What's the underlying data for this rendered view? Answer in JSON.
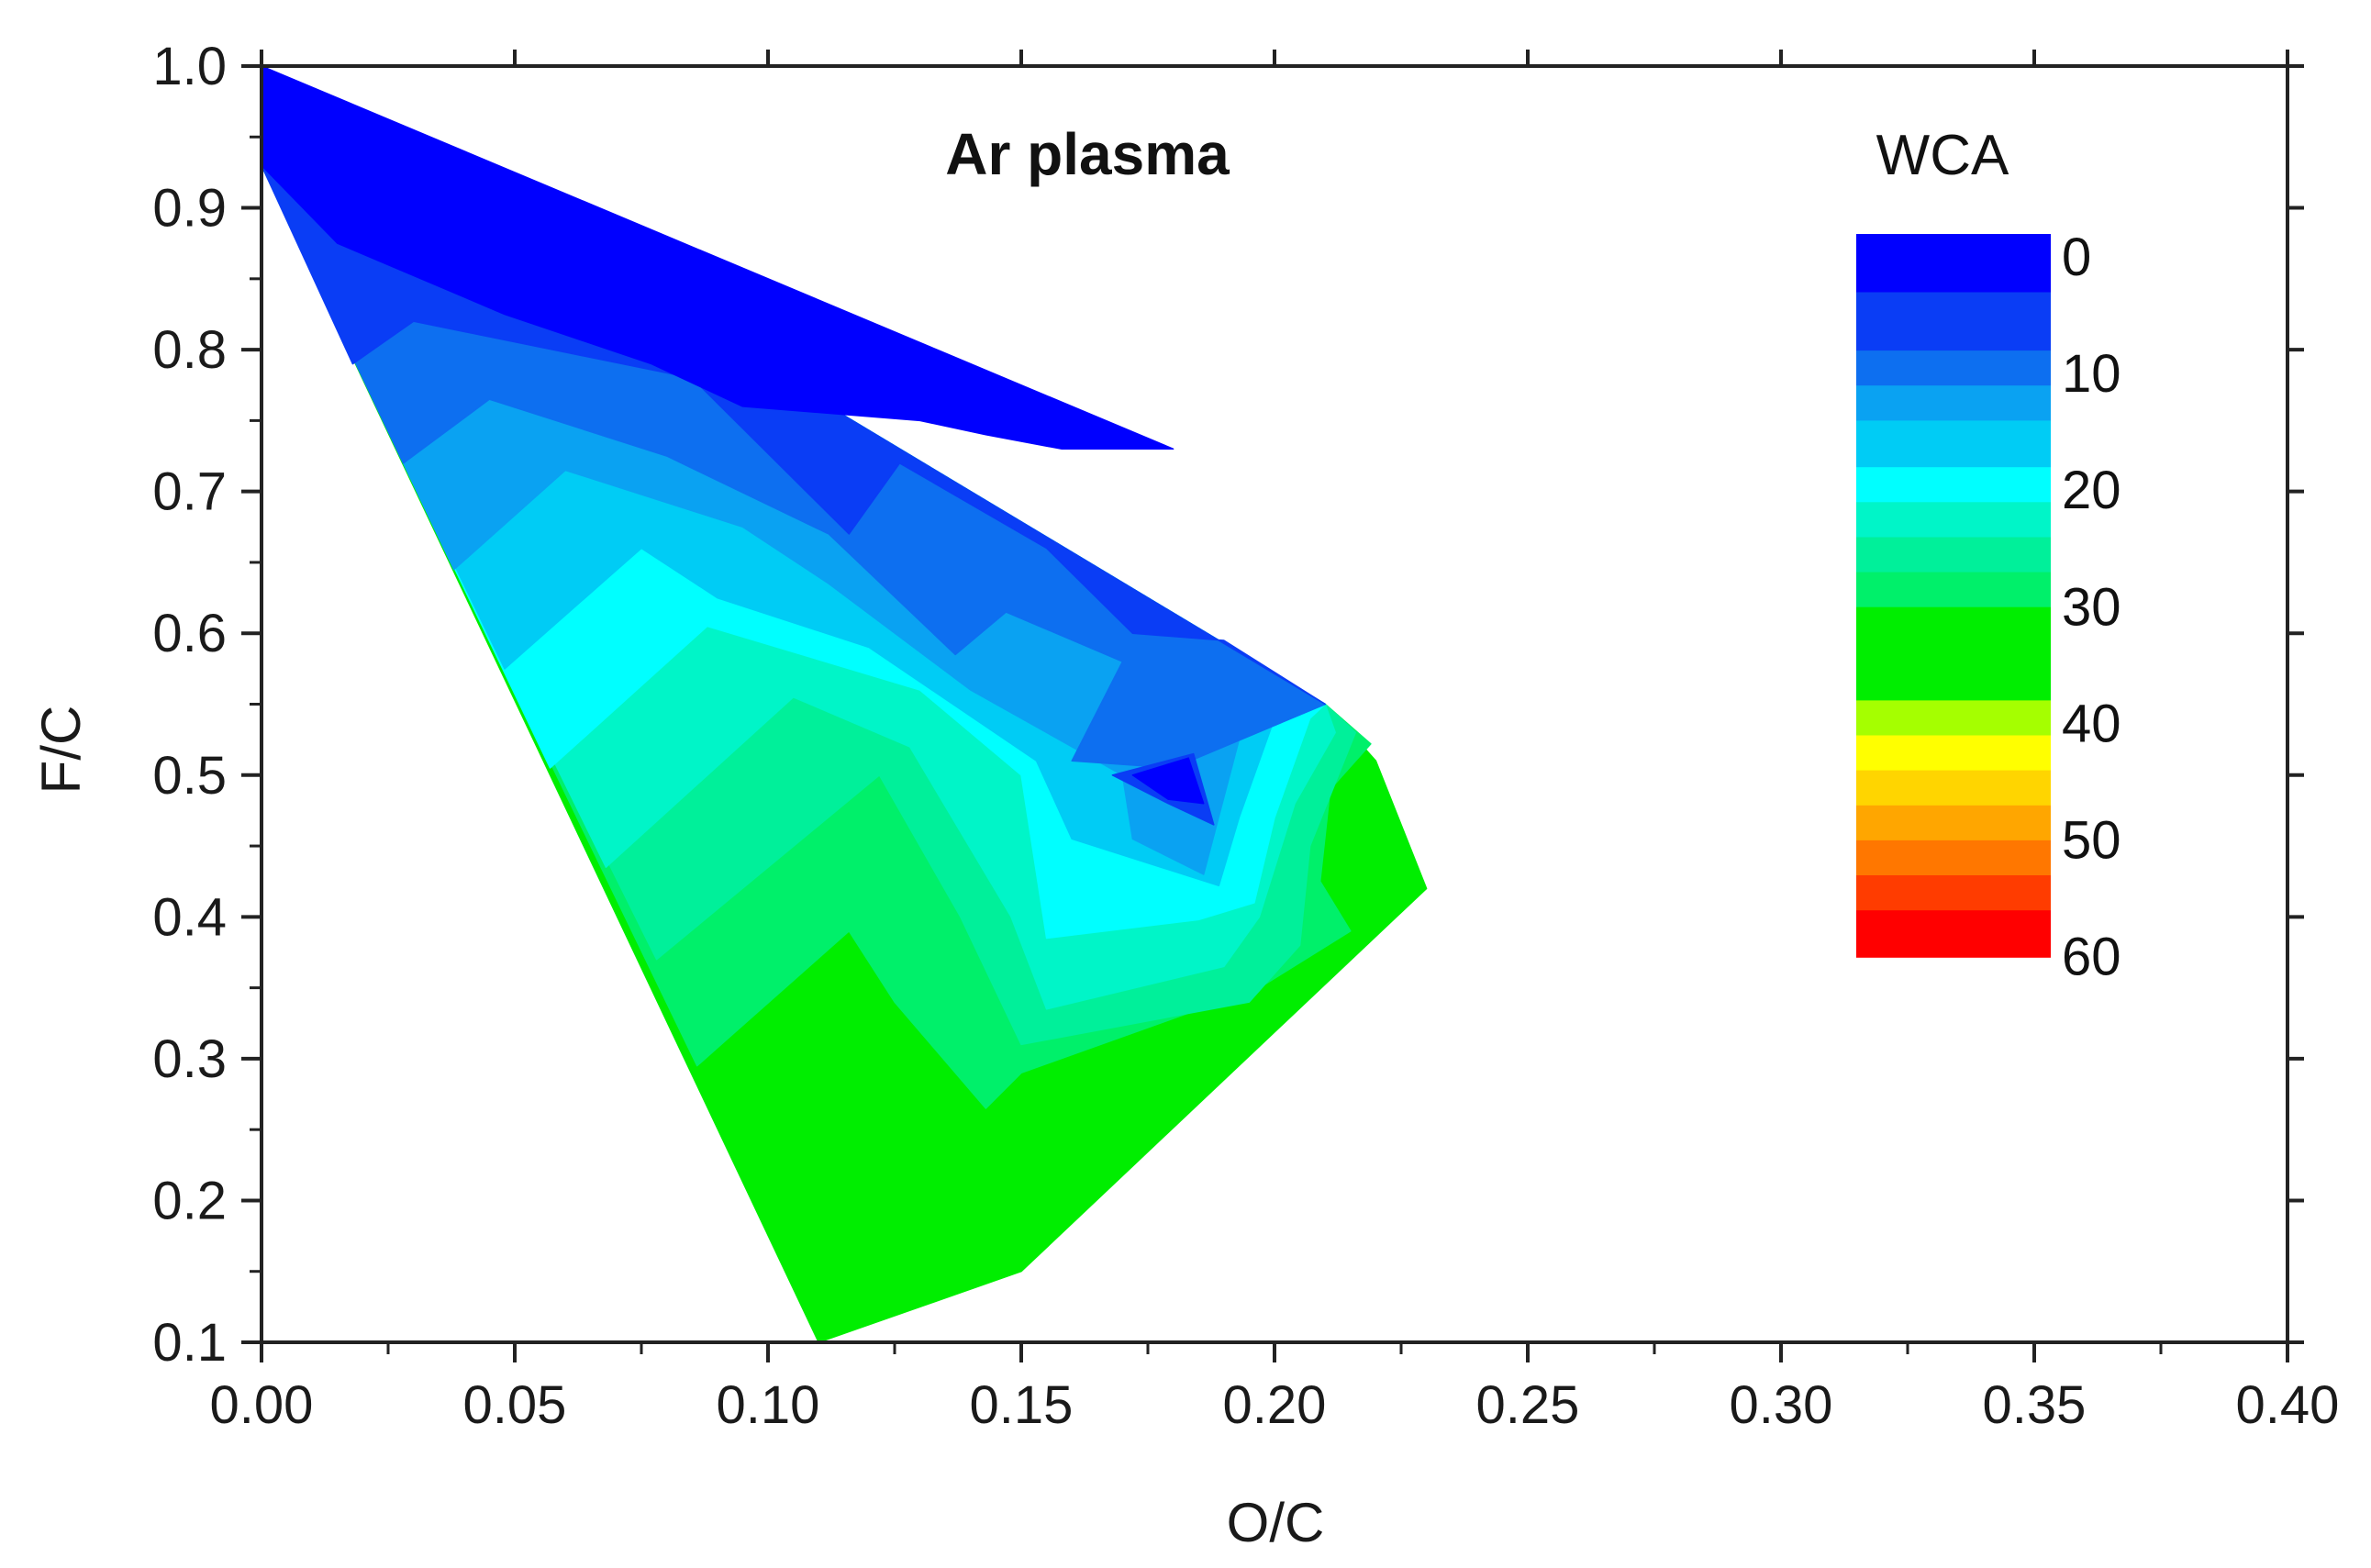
{
  "chart_data": {
    "type": "contour",
    "title": "Ar plasma",
    "xlabel": "O/C",
    "ylabel": "F/C",
    "xlim": [
      0.0,
      0.4
    ],
    "ylim": [
      0.1,
      1.0
    ],
    "x_ticks": [
      "0.00",
      "0.05",
      "0.10",
      "0.15",
      "0.20",
      "0.25",
      "0.30",
      "0.35",
      "0.40"
    ],
    "y_ticks": [
      "0.1",
      "0.2",
      "0.3",
      "0.4",
      "0.5",
      "0.6",
      "0.7",
      "0.8",
      "0.9",
      "1.0"
    ],
    "colorbar": {
      "title": "WCA",
      "labels": [
        "0",
        "10",
        "20",
        "30",
        "40",
        "50",
        "60"
      ],
      "levels": [
        {
          "from": 0,
          "to": 5,
          "color": "#0000ff"
        },
        {
          "from": 5,
          "to": 10,
          "color": "#0a3df5"
        },
        {
          "from": 10,
          "to": 13,
          "color": "#0d6ff0"
        },
        {
          "from": 13,
          "to": 16,
          "color": "#0aa2f2"
        },
        {
          "from": 16,
          "to": 20,
          "color": "#00ccf5"
        },
        {
          "from": 20,
          "to": 23,
          "color": "#00ffff"
        },
        {
          "from": 23,
          "to": 26,
          "color": "#00f5c8"
        },
        {
          "from": 26,
          "to": 29,
          "color": "#00f09a"
        },
        {
          "from": 29,
          "to": 32,
          "color": "#00f06a"
        },
        {
          "from": 32,
          "to": 40,
          "color": "#00ee00"
        },
        {
          "from": 40,
          "to": 43,
          "color": "#a5ff00"
        },
        {
          "from": 43,
          "to": 46,
          "color": "#ffff00"
        },
        {
          "from": 46,
          "to": 49,
          "color": "#ffd500"
        },
        {
          "from": 49,
          "to": 52,
          "color": "#ffa600"
        },
        {
          "from": 52,
          "to": 55,
          "color": "#ff7700"
        },
        {
          "from": 55,
          "to": 58,
          "color": "#ff3c00"
        },
        {
          "from": 58,
          "to": 62,
          "color": "#ff0000"
        }
      ]
    },
    "domain_outline": [
      [
        0.0,
        1.0
      ],
      [
        0.21,
        0.55
      ],
      [
        0.22,
        0.51
      ],
      [
        0.23,
        0.42
      ],
      [
        0.15,
        0.15
      ],
      [
        0.11,
        0.1
      ],
      [
        0.0,
        0.93
      ]
    ],
    "bands": [
      {
        "color": "#00ee00",
        "polygon": [
          [
            0.0,
            1.0
          ],
          [
            0.21,
            0.55
          ],
          [
            0.22,
            0.51
          ],
          [
            0.23,
            0.42
          ],
          [
            0.15,
            0.15
          ],
          [
            0.11,
            0.1
          ],
          [
            0.0,
            0.93
          ]
        ]
      },
      {
        "color": "#00f06a",
        "polygon": [
          [
            0.0,
            1.0
          ],
          [
            0.21,
            0.55
          ],
          [
            0.219,
            0.522
          ],
          [
            0.211,
            0.49
          ],
          [
            0.209,
            0.425
          ],
          [
            0.215,
            0.39
          ],
          [
            0.197,
            0.35
          ],
          [
            0.15,
            0.29
          ],
          [
            0.143,
            0.265
          ],
          [
            0.125,
            0.34
          ],
          [
            0.116,
            0.39
          ],
          [
            0.086,
            0.295
          ],
          [
            0.0,
            0.93
          ]
        ]
      },
      {
        "color": "#00f09a",
        "polygon": [
          [
            0.0,
            1.0
          ],
          [
            0.21,
            0.55
          ],
          [
            0.216,
            0.53
          ],
          [
            0.207,
            0.45
          ],
          [
            0.205,
            0.38
          ],
          [
            0.195,
            0.34
          ],
          [
            0.15,
            0.31
          ],
          [
            0.138,
            0.4
          ],
          [
            0.122,
            0.5
          ],
          [
            0.078,
            0.37
          ],
          [
            0.0,
            0.93
          ]
        ]
      },
      {
        "color": "#00f5c8",
        "polygon": [
          [
            0.0,
            1.0
          ],
          [
            0.21,
            0.55
          ],
          [
            0.212,
            0.53
          ],
          [
            0.204,
            0.48
          ],
          [
            0.197,
            0.4
          ],
          [
            0.19,
            0.365
          ],
          [
            0.155,
            0.335
          ],
          [
            0.148,
            0.4
          ],
          [
            0.128,
            0.52
          ],
          [
            0.105,
            0.555
          ],
          [
            0.068,
            0.435
          ],
          [
            0.0,
            0.93
          ]
        ]
      },
      {
        "color": "#00ffff",
        "polygon": [
          [
            0.0,
            1.0
          ],
          [
            0.21,
            0.55
          ],
          [
            0.207,
            0.54
          ],
          [
            0.2,
            0.47
          ],
          [
            0.196,
            0.41
          ],
          [
            0.185,
            0.398
          ],
          [
            0.155,
            0.385
          ],
          [
            0.15,
            0.5
          ],
          [
            0.13,
            0.56
          ],
          [
            0.088,
            0.605
          ],
          [
            0.057,
            0.505
          ],
          [
            0.0,
            0.93
          ]
        ]
      },
      {
        "color": "#00ccf5",
        "polygon": [
          [
            0.0,
            1.0
          ],
          [
            0.21,
            0.55
          ],
          [
            0.2,
            0.54
          ],
          [
            0.193,
            0.47
          ],
          [
            0.189,
            0.422
          ],
          [
            0.16,
            0.455
          ],
          [
            0.153,
            0.51
          ],
          [
            0.12,
            0.59
          ],
          [
            0.09,
            0.625
          ],
          [
            0.075,
            0.66
          ],
          [
            0.048,
            0.575
          ],
          [
            0.0,
            0.93
          ]
        ]
      },
      {
        "color": "#0aa2f2",
        "polygon": [
          [
            0.0,
            1.0
          ],
          [
            0.21,
            0.55
          ],
          [
            0.193,
            0.525
          ],
          [
            0.186,
            0.43
          ],
          [
            0.172,
            0.455
          ],
          [
            0.17,
            0.5
          ],
          [
            0.14,
            0.56
          ],
          [
            0.112,
            0.635
          ],
          [
            0.095,
            0.675
          ],
          [
            0.06,
            0.715
          ],
          [
            0.038,
            0.645
          ],
          [
            0.0,
            0.93
          ]
        ]
      },
      {
        "color": "#0d6ff0",
        "polygon": [
          [
            0.0,
            1.0
          ],
          [
            0.21,
            0.55
          ],
          [
            0.18,
            0.505
          ],
          [
            0.16,
            0.51
          ],
          [
            0.17,
            0.58
          ],
          [
            0.147,
            0.615
          ],
          [
            0.137,
            0.585
          ],
          [
            0.112,
            0.67
          ],
          [
            0.08,
            0.725
          ],
          [
            0.045,
            0.765
          ],
          [
            0.028,
            0.72
          ],
          [
            0.0,
            0.93
          ]
        ]
      },
      {
        "color": "#0a3df5",
        "polygon": [
          [
            0.0,
            1.0
          ],
          [
            0.21,
            0.55
          ],
          [
            0.19,
            0.595
          ],
          [
            0.172,
            0.6
          ],
          [
            0.155,
            0.66
          ],
          [
            0.126,
            0.72
          ],
          [
            0.116,
            0.67
          ],
          [
            0.085,
            0.78
          ],
          [
            0.03,
            0.82
          ],
          [
            0.018,
            0.79
          ],
          [
            0.0,
            0.93
          ]
        ]
      },
      {
        "color": "#0a3df5",
        "polygon": [
          [
            0.168,
            0.5
          ],
          [
            0.184,
            0.515
          ],
          [
            0.188,
            0.465
          ],
          [
            0.179,
            0.48
          ]
        ]
      },
      {
        "color": "#0000ff",
        "polygon": [
          [
            0.0,
            1.0
          ],
          [
            0.18,
            0.73
          ],
          [
            0.158,
            0.73
          ],
          [
            0.143,
            0.74
          ],
          [
            0.13,
            0.75
          ],
          [
            0.095,
            0.76
          ],
          [
            0.077,
            0.79
          ],
          [
            0.048,
            0.825
          ],
          [
            0.015,
            0.875
          ],
          [
            0.0,
            0.93
          ]
        ]
      },
      {
        "color": "#0000ff",
        "polygon": [
          [
            0.172,
            0.5
          ],
          [
            0.183,
            0.512
          ],
          [
            0.186,
            0.48
          ],
          [
            0.179,
            0.483
          ]
        ]
      }
    ]
  }
}
